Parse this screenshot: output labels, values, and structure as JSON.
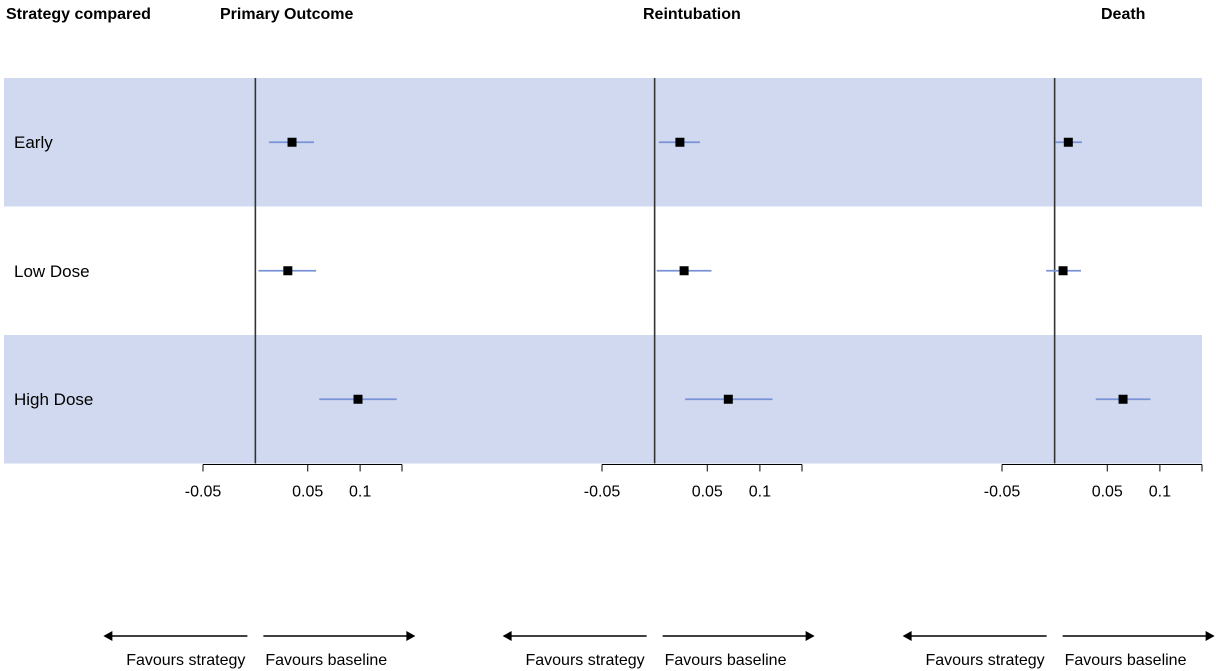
{
  "header": {
    "strategy_col": "Strategy compared"
  },
  "colors": {
    "band": "#d0d9f0",
    "ci_line": "#7a93d6",
    "point": "#000000",
    "zero_line": "#333333"
  },
  "rows": [
    "Early",
    "Low Dose",
    "High Dose"
  ],
  "direction": {
    "left": "Favours strategy",
    "right": "Favours baseline"
  },
  "chart_data": [
    {
      "type": "forest",
      "title": "Primary Outcome",
      "ticks": [
        "-0.05",
        "0.05",
        "0.1"
      ],
      "tick_values": [
        -0.05,
        0.05,
        0.1
      ],
      "xlim": [
        -0.05,
        0.14
      ],
      "reference": 0,
      "points": [
        {
          "label": "Early",
          "estimate": 0.035,
          "lo": 0.013,
          "hi": 0.056
        },
        {
          "label": "Low Dose",
          "estimate": 0.031,
          "lo": 0.003,
          "hi": 0.058
        },
        {
          "label": "High Dose",
          "estimate": 0.098,
          "lo": 0.061,
          "hi": 0.135
        }
      ]
    },
    {
      "type": "forest",
      "title": "Reintubation",
      "ticks": [
        "-0.05",
        "0.05",
        "0.1"
      ],
      "tick_values": [
        -0.05,
        0.05,
        0.1
      ],
      "xlim": [
        -0.05,
        0.14
      ],
      "reference": 0,
      "points": [
        {
          "label": "Early",
          "estimate": 0.024,
          "lo": 0.004,
          "hi": 0.043
        },
        {
          "label": "Low Dose",
          "estimate": 0.028,
          "lo": 0.002,
          "hi": 0.054
        },
        {
          "label": "High Dose",
          "estimate": 0.07,
          "lo": 0.029,
          "hi": 0.112
        }
      ]
    },
    {
      "type": "forest",
      "title": "Death",
      "ticks": [
        "-0.05",
        "0.05",
        "0.1"
      ],
      "tick_values": [
        -0.05,
        0.05,
        0.1
      ],
      "xlim": [
        -0.05,
        0.14
      ],
      "reference": 0,
      "points": [
        {
          "label": "Early",
          "estimate": 0.013,
          "lo": 0.001,
          "hi": 0.026
        },
        {
          "label": "Low Dose",
          "estimate": 0.008,
          "lo": -0.008,
          "hi": 0.025
        },
        {
          "label": "High Dose",
          "estimate": 0.065,
          "lo": 0.039,
          "hi": 0.091
        }
      ]
    }
  ]
}
